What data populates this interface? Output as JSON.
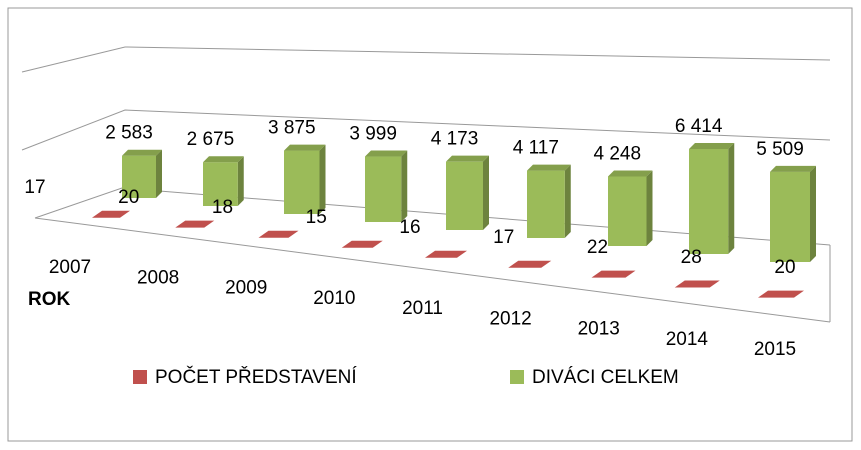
{
  "chart_data": {
    "type": "bar3d",
    "categories": [
      "2007",
      "2008",
      "2009",
      "2010",
      "2011",
      "2012",
      "2013",
      "2014",
      "2015"
    ],
    "x_label": "ROK",
    "series": [
      {
        "name": "POČET PŘEDSTAVENÍ",
        "color": "#c0504d",
        "values": [
          17,
          20,
          18,
          15,
          16,
          17,
          22,
          28,
          20
        ]
      },
      {
        "name": "DIVÁCI CELKEM",
        "color": "#9bbb59",
        "values": [
          2583,
          2675,
          3875,
          3999,
          4173,
          4117,
          4248,
          6414,
          5509
        ],
        "value_labels": [
          "2 583",
          "2 675",
          "3 875",
          "3 999",
          "4 173",
          "4 117",
          "4 248",
          "6 414",
          "5 509"
        ]
      }
    ]
  }
}
